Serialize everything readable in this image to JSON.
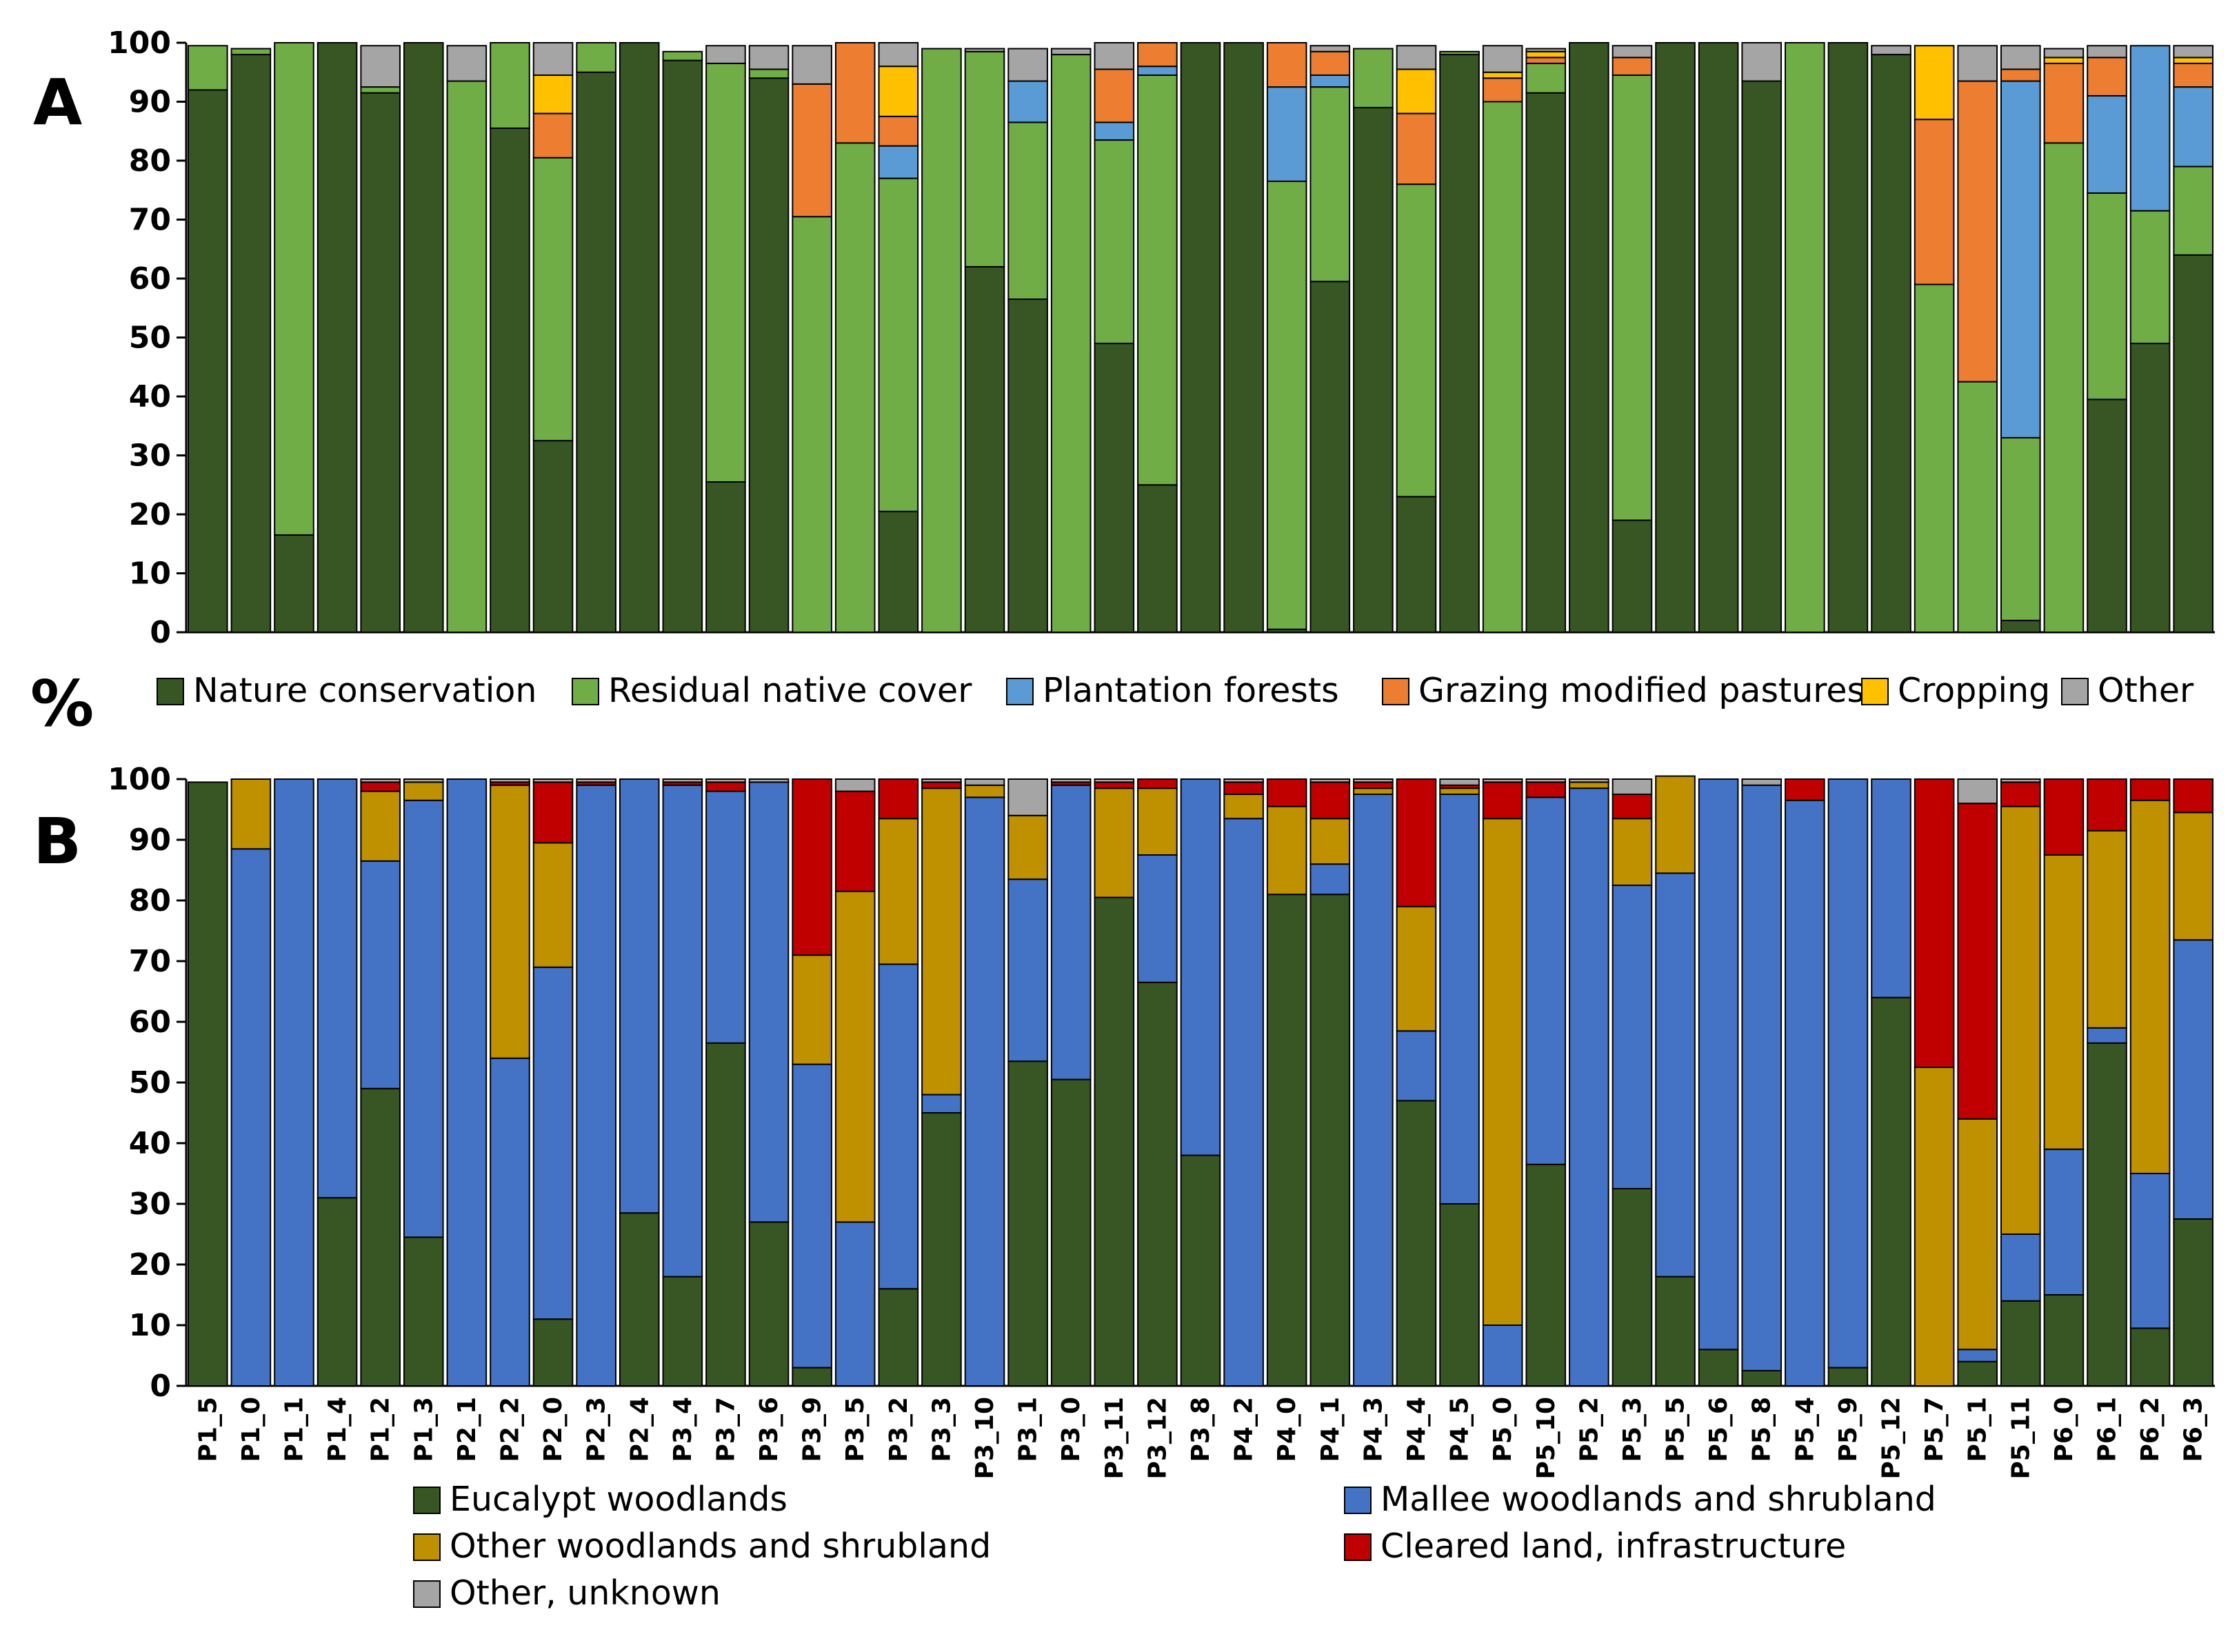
{
  "figure": {
    "panel_a_letter": "A",
    "panel_b_letter": "B",
    "shared_ylabel": "%"
  },
  "colors": {
    "nature_conservation": "#375623",
    "residual_native_cover": "#70AD47",
    "plantation_forests": "#5B9BD5",
    "grazing_modified_pastures": "#ED7D31",
    "cropping": "#FFC000",
    "other": "#A5A5A5",
    "eucalypt_woodlands": "#375623",
    "mallee_woodlands": "#4472C4",
    "other_woodlands": "#BF9000",
    "cleared_land": "#C00000",
    "other_unknown": "#A5A5A5"
  },
  "chart_data": [
    {
      "type": "bar",
      "stacked": true,
      "panel": "A",
      "title": "",
      "xlabel": "",
      "ylabel": "%",
      "ylim": [
        0,
        100
      ],
      "yticks": [
        0,
        10,
        20,
        30,
        40,
        50,
        60,
        70,
        80,
        90,
        100
      ],
      "legend_position": "bottom",
      "categories": [
        "P1_5",
        "P1_0",
        "P1_1",
        "P1_4",
        "P1_2",
        "P1_3",
        "P2_1",
        "P2_2",
        "P2_0",
        "P2_3",
        "P2_4",
        "P3_4",
        "P3_7",
        "P3_6",
        "P3_9",
        "P3_5",
        "P3_2",
        "P3_3",
        "P3_10",
        "P3_1",
        "P3_0",
        "P3_11",
        "P3_12",
        "P3_8",
        "P4_2",
        "P4_0",
        "P4_1",
        "P4_3",
        "P4_4",
        "P4_5",
        "P5_0",
        "P5_10",
        "P5_2",
        "P5_3",
        "P5_5",
        "P5_6",
        "P5_8",
        "P5_4",
        "P5_9",
        "P5_12",
        "P5_7",
        "P5_1",
        "P5_11",
        "P6_0",
        "P6_1",
        "P6_2",
        "P6_3"
      ],
      "series": [
        {
          "name": "Nature conservation",
          "color_key": "nature_conservation",
          "values": [
            92,
            98,
            16.5,
            100,
            91.5,
            100,
            0,
            85.5,
            32.5,
            95,
            100,
            97,
            25.5,
            94,
            0,
            0,
            20.5,
            0,
            62,
            56.5,
            0,
            49,
            25,
            100,
            100,
            0.5,
            59.5,
            89,
            23,
            98,
            0,
            91.5,
            100,
            19,
            100,
            100,
            93.5,
            0,
            100,
            98,
            0,
            0,
            2,
            0,
            39.5,
            49,
            64
          ]
        },
        {
          "name": "Residual native cover",
          "color_key": "residual_native_cover",
          "values": [
            7.5,
            1,
            83.5,
            0,
            1,
            0,
            93.5,
            14.5,
            48,
            5,
            0,
            1.5,
            71,
            1.5,
            70.5,
            83,
            56.5,
            99,
            36.5,
            30,
            98,
            34.5,
            69.5,
            0,
            0,
            76,
            33,
            10,
            53,
            0.5,
            90,
            5,
            0,
            75.5,
            0,
            0,
            0,
            100,
            0,
            0,
            59,
            42.5,
            31,
            83,
            35,
            22.5,
            15
          ]
        },
        {
          "name": "Plantation forests",
          "color_key": "plantation_forests",
          "values": [
            0,
            0,
            0,
            0,
            0,
            0,
            0,
            0,
            0,
            0,
            0,
            0,
            0,
            0,
            0,
            0,
            5.5,
            0,
            0,
            7,
            0,
            3,
            1.5,
            0,
            0,
            16,
            2,
            0,
            0,
            0,
            0,
            0,
            0,
            0,
            0,
            0,
            0,
            0,
            0,
            0,
            0,
            0,
            60.5,
            0,
            16.5,
            28,
            13.5
          ]
        },
        {
          "name": "Grazing modified pastures",
          "color_key": "grazing_modified_pastures",
          "values": [
            0,
            0,
            0,
            0,
            0,
            0,
            0,
            0,
            7.5,
            0,
            0,
            0,
            0,
            0,
            22.5,
            17,
            5,
            0,
            0,
            0,
            0,
            9,
            4,
            0,
            0,
            7.5,
            4,
            0,
            12,
            0,
            4,
            1,
            0,
            3,
            0,
            0,
            0,
            0,
            0,
            0,
            28,
            51,
            2,
            13.5,
            6.5,
            0,
            4
          ]
        },
        {
          "name": "Cropping",
          "color_key": "cropping",
          "values": [
            0,
            0,
            0,
            0,
            0,
            0,
            0,
            0,
            6.5,
            0,
            0,
            0,
            0,
            0,
            0,
            0,
            8.5,
            0,
            0,
            0,
            0,
            0,
            0,
            0,
            0,
            0,
            0,
            0,
            7.5,
            0,
            1,
            1,
            0,
            0,
            0,
            0,
            0,
            0,
            0,
            0,
            12.5,
            0,
            0,
            1,
            0,
            0,
            1
          ]
        },
        {
          "name": "Other",
          "color_key": "other",
          "values": [
            0,
            0,
            0,
            0,
            7,
            0,
            6,
            0,
            5.5,
            0,
            0,
            0,
            3,
            4,
            6.5,
            0,
            4,
            0,
            0.5,
            5.5,
            1,
            4.5,
            0,
            0,
            0,
            0,
            1,
            0,
            4,
            0,
            4.5,
            0.5,
            0,
            2,
            0,
            0,
            6.5,
            0,
            0,
            1.5,
            0,
            6,
            4,
            1.5,
            2,
            0,
            2
          ]
        }
      ]
    },
    {
      "type": "bar",
      "stacked": true,
      "panel": "B",
      "title": "",
      "xlabel": "",
      "ylabel": "%",
      "ylim": [
        0,
        100
      ],
      "yticks": [
        0,
        10,
        20,
        30,
        40,
        50,
        60,
        70,
        80,
        90,
        100
      ],
      "legend_position": "bottom",
      "categories": [
        "P1_5",
        "P1_0",
        "P1_1",
        "P1_4",
        "P1_2",
        "P1_3",
        "P2_1",
        "P2_2",
        "P2_0",
        "P2_3",
        "P2_4",
        "P3_4",
        "P3_7",
        "P3_6",
        "P3_9",
        "P3_5",
        "P3_2",
        "P3_3",
        "P3_10",
        "P3_1",
        "P3_0",
        "P3_11",
        "P3_12",
        "P3_8",
        "P4_2",
        "P4_0",
        "P4_1",
        "P4_3",
        "P4_4",
        "P4_5",
        "P5_0",
        "P5_10",
        "P5_2",
        "P5_3",
        "P5_5",
        "P5_6",
        "P5_8",
        "P5_4",
        "P5_9",
        "P5_12",
        "P5_7",
        "P5_1",
        "P5_11",
        "P6_0",
        "P6_1",
        "P6_2",
        "P6_3"
      ],
      "series": [
        {
          "name": "Eucalypt woodlands",
          "color_key": "eucalypt_woodlands",
          "values": [
            99.5,
            0,
            0,
            31,
            49,
            24.5,
            0,
            0,
            11,
            0,
            28.5,
            18,
            56.5,
            27,
            3,
            0,
            16,
            45,
            0,
            53.5,
            50.5,
            80.5,
            66.5,
            38,
            0,
            81,
            81,
            0,
            47,
            30,
            0,
            36.5,
            0,
            32.5,
            18,
            6,
            2.5,
            0,
            3,
            64,
            0,
            4,
            14,
            15,
            56.5,
            9.5,
            27.5
          ]
        },
        {
          "name": "Mallee woodlands and shrubland",
          "color_key": "mallee_woodlands",
          "values": [
            0,
            88.5,
            100,
            69,
            37.5,
            72,
            100,
            54,
            58,
            99,
            71.5,
            81,
            41.5,
            72.5,
            50,
            27,
            53.5,
            3,
            97,
            30,
            48.5,
            0,
            21,
            62,
            93.5,
            0,
            5,
            97.5,
            11.5,
            67.5,
            10,
            60.5,
            98.5,
            50,
            66.5,
            94,
            96.5,
            96.5,
            97,
            36,
            0,
            2,
            11,
            24,
            2.5,
            25.5,
            46
          ]
        },
        {
          "name": "Other woodlands and shrubland",
          "color_key": "other_woodlands",
          "values": [
            0,
            11.5,
            0,
            0,
            11.5,
            3,
            0,
            45,
            20.5,
            0,
            0,
            0,
            0,
            0,
            18,
            54.5,
            24,
            50.5,
            2,
            10.5,
            0,
            18,
            11,
            0,
            4,
            14.5,
            7.5,
            1,
            20.5,
            1,
            83.5,
            0,
            1,
            11,
            16,
            0,
            0,
            0,
            0,
            0,
            52.5,
            38,
            70.5,
            48.5,
            32.5,
            61.5,
            21
          ]
        },
        {
          "name": "Cleared land, infrastructure",
          "color_key": "cleared_land",
          "values": [
            0,
            0,
            0,
            0,
            1.5,
            0,
            0,
            0.5,
            10,
            0.5,
            0,
            0.5,
            1.5,
            0,
            29,
            16.5,
            6.5,
            1,
            0,
            0,
            0.5,
            1,
            1.5,
            0,
            2,
            4.5,
            6,
            1,
            21,
            0.5,
            6,
            2.5,
            0,
            4,
            0,
            0,
            0,
            3.5,
            0,
            0,
            47.5,
            52,
            4,
            12.5,
            8.5,
            3.5,
            5.5
          ]
        },
        {
          "name": "Other, unknown",
          "color_key": "other_unknown",
          "values": [
            0,
            0,
            0,
            0,
            0.5,
            0.5,
            0,
            0.5,
            0.5,
            0.5,
            0,
            0.5,
            0.5,
            0.5,
            0,
            2,
            0,
            0.5,
            1,
            6,
            0.5,
            0.5,
            0,
            0,
            0.5,
            0,
            0.5,
            0.5,
            0,
            1,
            0.5,
            0.5,
            0.5,
            2.5,
            0,
            0,
            1,
            0,
            0,
            0,
            0,
            4,
            0.5,
            0,
            0,
            0,
            0
          ]
        }
      ]
    }
  ]
}
